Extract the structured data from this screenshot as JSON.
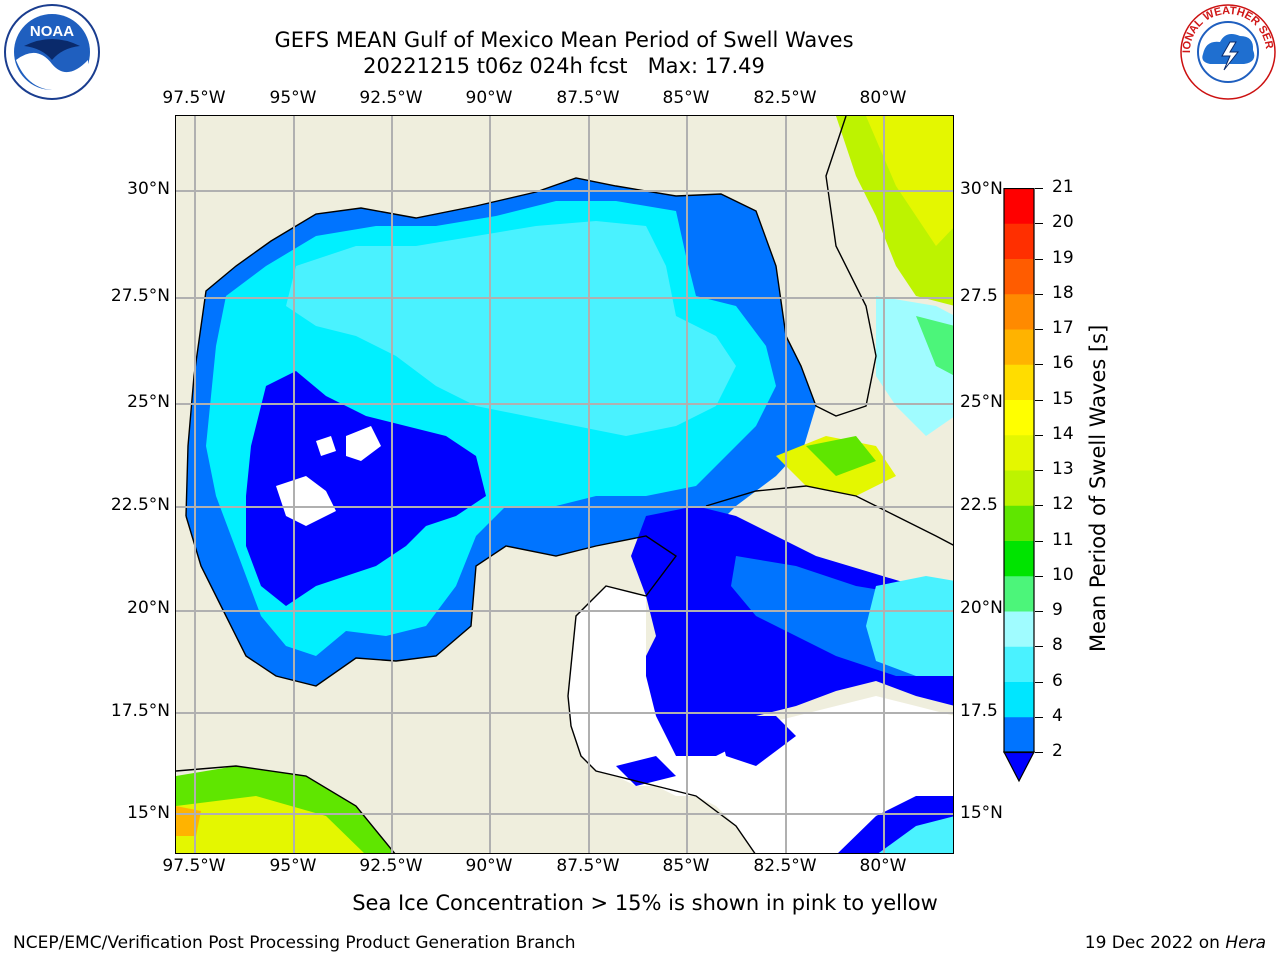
{
  "title": {
    "line1": "GEFS MEAN Gulf of Mexico Mean Period of Swell Waves",
    "line2": "20221215 t06z 024h fcst   Max: 17.49"
  },
  "map": {
    "longitude_labels": [
      "97.5°W",
      "95°W",
      "92.5°W",
      "90°W",
      "87.5°W",
      "85°W",
      "82.5°W",
      "80°W"
    ],
    "latitude_labels_left": [
      "30°N",
      "27.5°N",
      "25°N",
      "22.5°N",
      "20°N",
      "17.5°N",
      "15°N"
    ],
    "latitude_labels_right": [
      "30°N",
      "27.5",
      "25°N",
      "22.5",
      "20°N",
      "17.5",
      "15°N"
    ],
    "colors": {
      "land": "#efeedd",
      "grid": "#b0b0b0",
      "no_data": "#ffffff"
    }
  },
  "colorbar": {
    "label": "Mean Period of Swell Waves [s]",
    "ticks": [
      "2",
      "4",
      "6",
      "8",
      "9",
      "10",
      "11",
      "12",
      "13",
      "14",
      "15",
      "16",
      "17",
      "18",
      "19",
      "20",
      "21"
    ],
    "colors": [
      "#0074ff",
      "#00e6ff",
      "#4af2ff",
      "#a0fcff",
      "#4cf57a",
      "#00e400",
      "#5fe600",
      "#bdf300",
      "#e4f700",
      "#ffff00",
      "#ffdd00",
      "#ffb300",
      "#ff8a00",
      "#ff5c00",
      "#ff2f00",
      "#ff0000"
    ],
    "extend_color": "#0000ff"
  },
  "footer": {
    "note": "Sea Ice Concentration > 15% is shown in pink to yellow",
    "left": "NCEP/EMC/Verification Post Processing Product Generation Branch",
    "right_date": "19 Dec 2022 on ",
    "right_host": "Hera"
  },
  "logos": {
    "left_text": "NOAA",
    "right_text": "NATIONAL WEATHER SERVICE"
  }
}
